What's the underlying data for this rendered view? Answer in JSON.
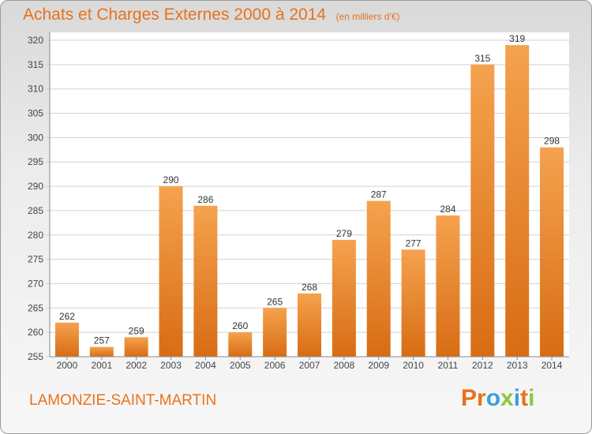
{
  "chart_data": {
    "type": "bar",
    "title": "Achats et Charges Externes 2000 à 2014",
    "unit": "(en milliers d'€)",
    "categories": [
      "2000",
      "2001",
      "2002",
      "2003",
      "2004",
      "2005",
      "2006",
      "2007",
      "2008",
      "2009",
      "2010",
      "2011",
      "2012",
      "2013",
      "2014"
    ],
    "values": [
      262,
      257,
      259,
      290,
      286,
      260,
      265,
      268,
      279,
      287,
      277,
      284,
      315,
      319,
      298
    ],
    "ylim": [
      255,
      320
    ],
    "yticks": [
      255,
      260,
      265,
      270,
      275,
      280,
      285,
      290,
      295,
      300,
      305,
      310,
      315,
      320
    ],
    "grid": true,
    "bar_color": "#e8832a",
    "xlabel": "",
    "ylabel": ""
  },
  "footer": {
    "commune": "LAMONZIE-SAINT-MARTIN",
    "logo_text": "Proxiti",
    "logo_colors": [
      "#e8721c",
      "#e8721c",
      "#3aa0d8",
      "#8cc63f",
      "#3aa0d8",
      "#e8721c",
      "#8cc63f"
    ]
  }
}
